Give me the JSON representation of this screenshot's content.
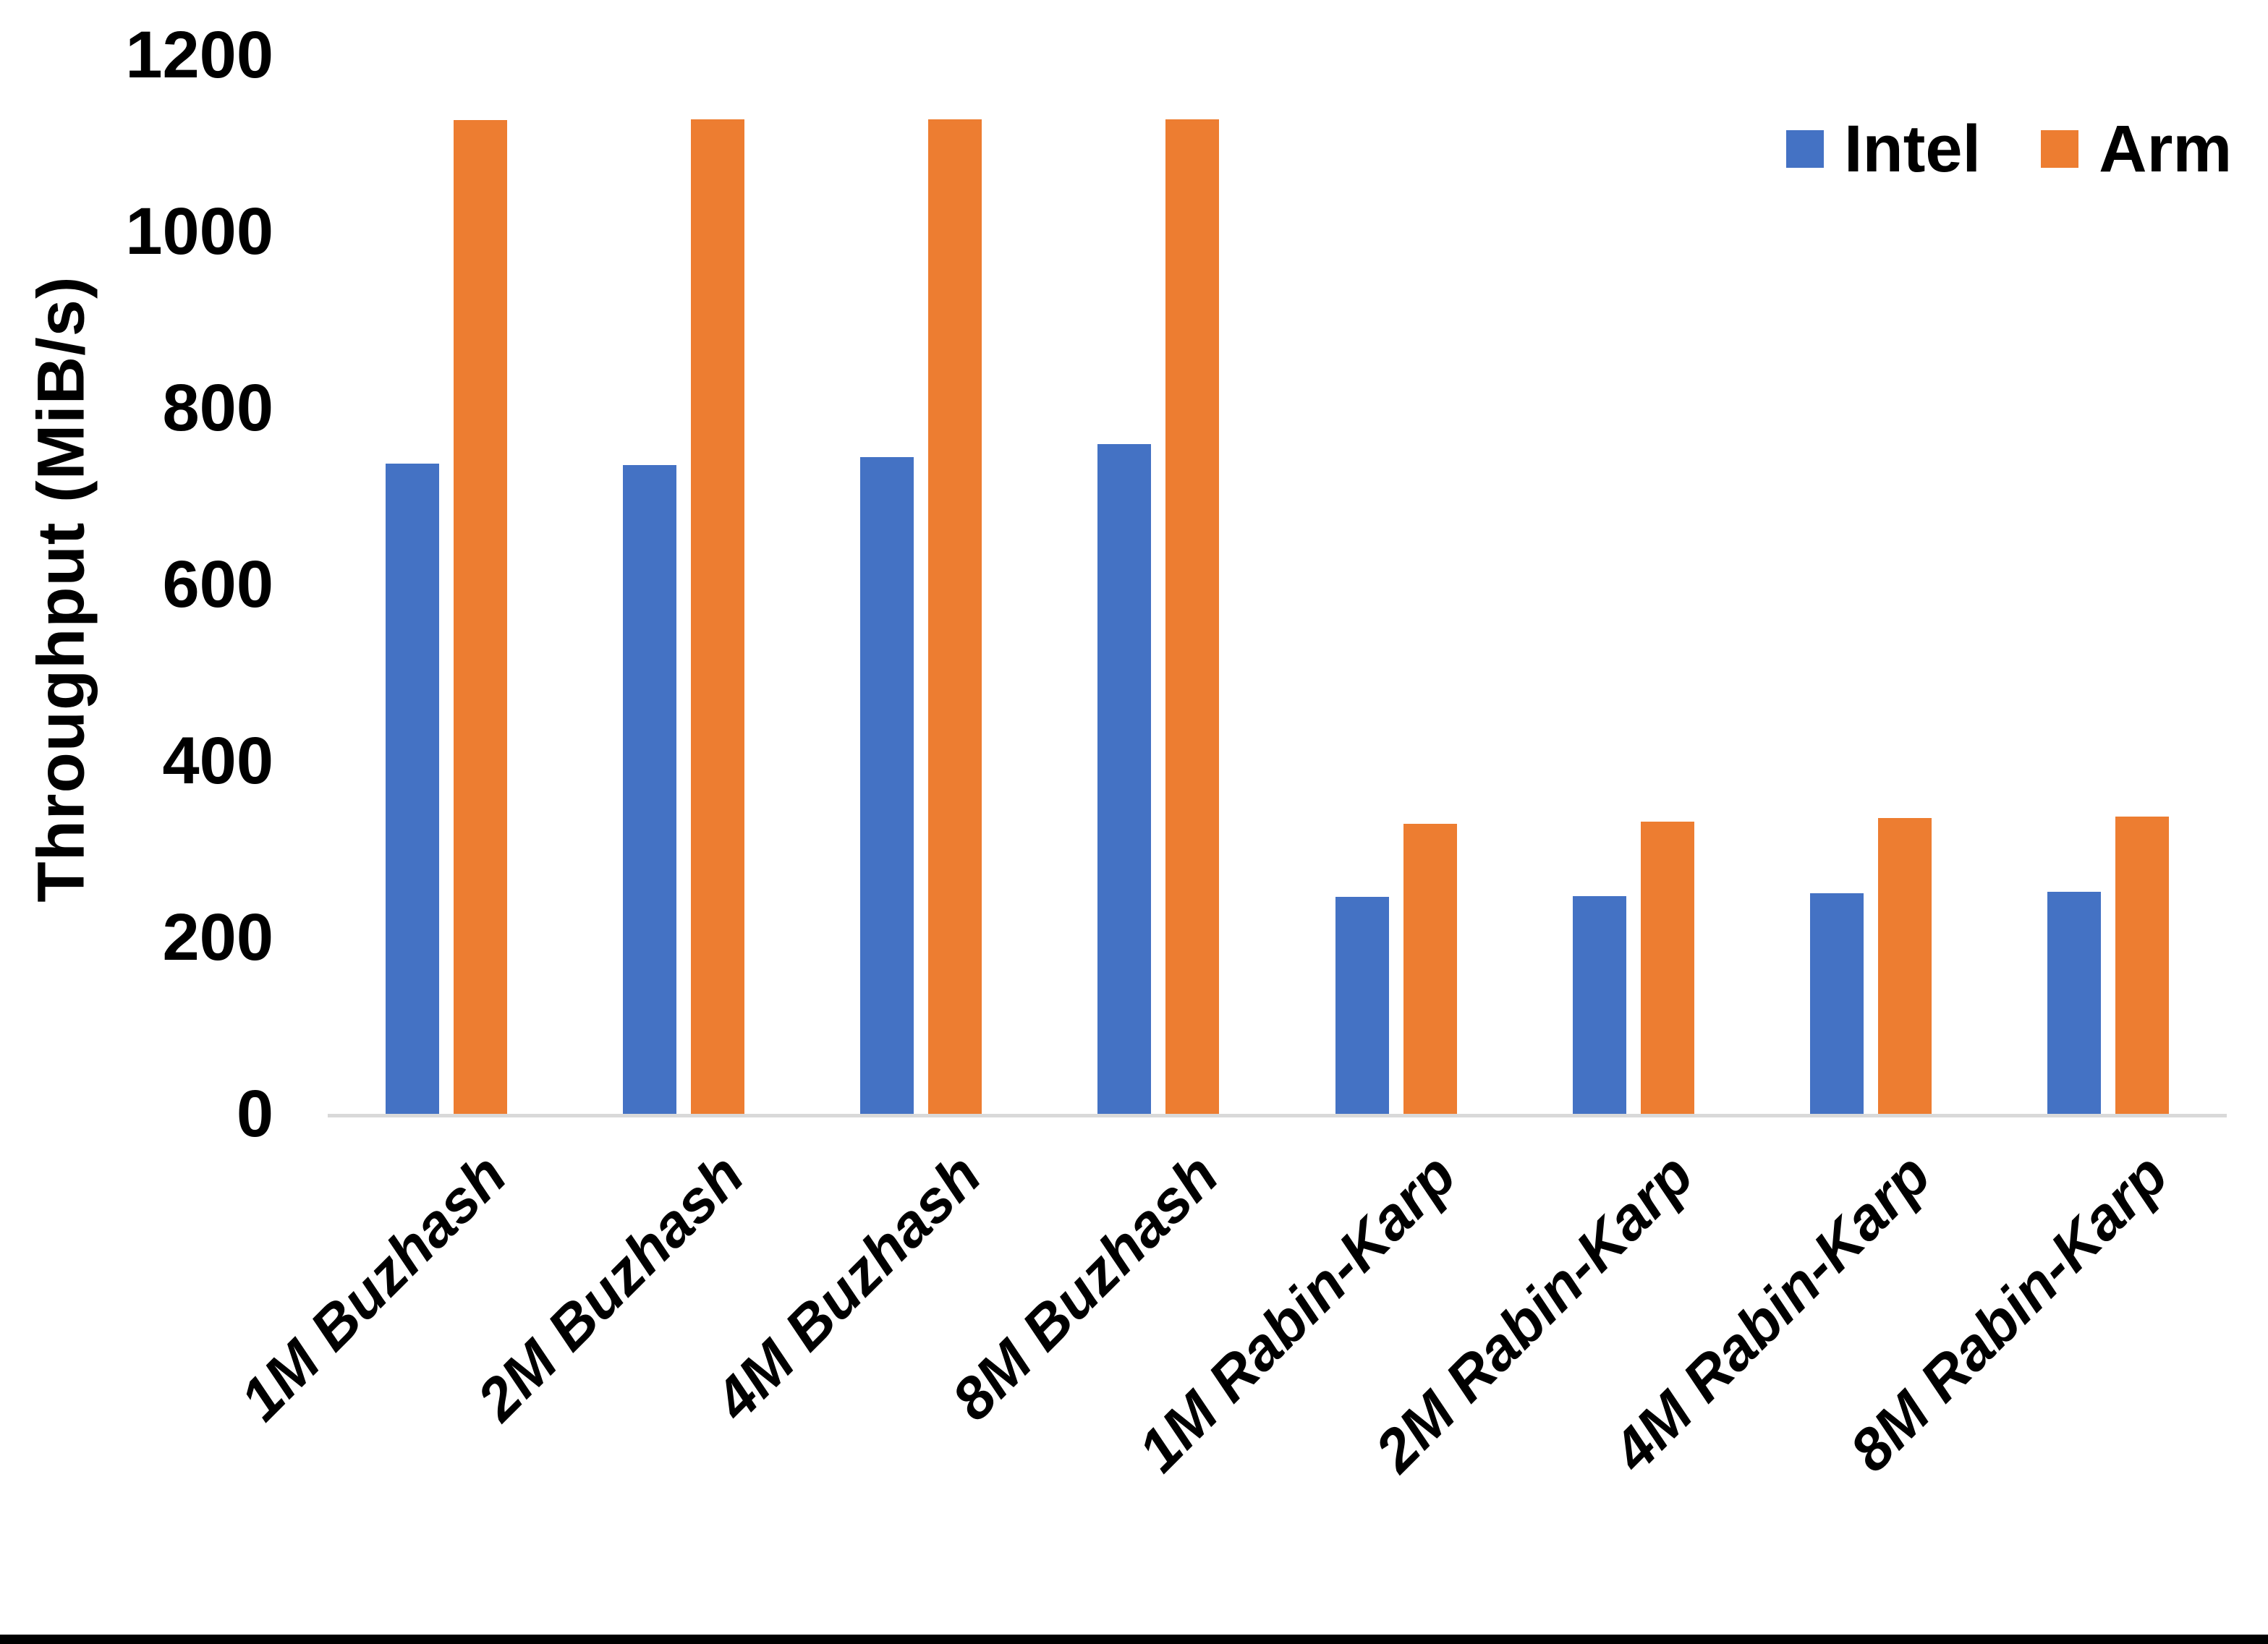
{
  "chart_data": {
    "type": "bar",
    "title": "",
    "xlabel": "",
    "ylabel": "Throughput (MiB/s)",
    "categories": [
      "1M Buzhash",
      "2M Buzhash",
      "4M Buzhash",
      "8M Buzhash",
      "1M Rabin-Karp",
      "2M Rabin-Karp",
      "4M Rabin-Karp",
      "8M Rabin-Karp"
    ],
    "series": [
      {
        "name": "Intel",
        "color": "#4472C4",
        "values": [
          737,
          735,
          744,
          759,
          246,
          247,
          250,
          252
        ]
      },
      {
        "name": "Arm",
        "color": "#ED7D31",
        "values": [
          1126,
          1127,
          1127,
          1127,
          329,
          331,
          335,
          337
        ]
      }
    ],
    "ylim": [
      0,
      1200
    ],
    "yticks": [
      0,
      200,
      400,
      600,
      800,
      1000,
      1200
    ],
    "grid": false,
    "legend_position": "top-right",
    "x_tick_rotation_deg": -45,
    "x_tick_style": "italic"
  },
  "colors": {
    "axis_line": "#D9D9D9",
    "text": "#000000",
    "background": "#FFFFFF",
    "bottom_border": "#000000"
  }
}
